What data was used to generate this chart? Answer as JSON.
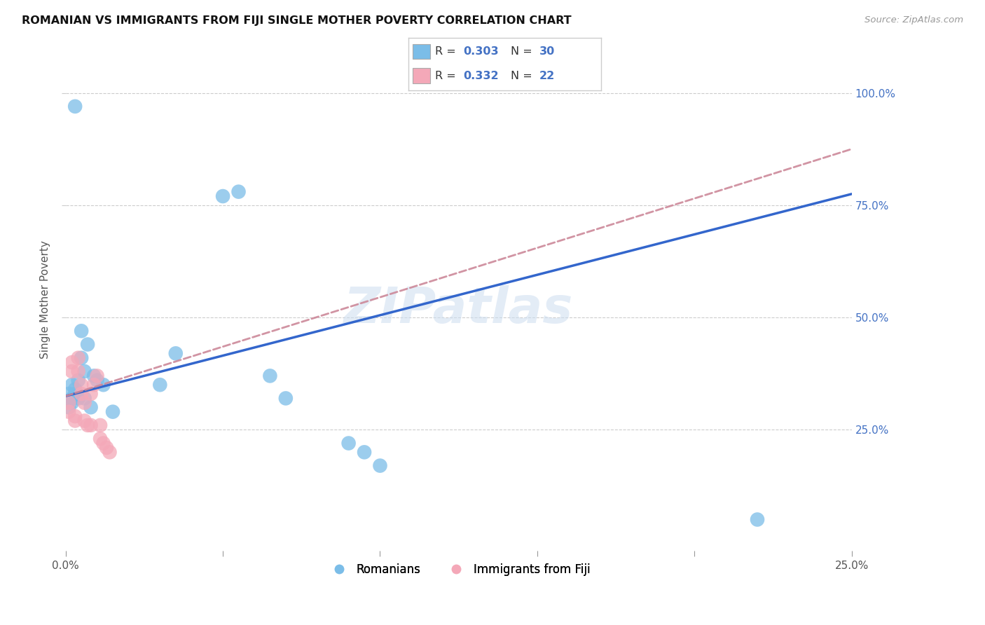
{
  "title": "ROMANIAN VS IMMIGRANTS FROM FIJI SINGLE MOTHER POVERTY CORRELATION CHART",
  "source": "Source: ZipAtlas.com",
  "ylabel": "Single Mother Poverty",
  "xlim": [
    0.0,
    0.25
  ],
  "ylim": [
    -0.02,
    1.1
  ],
  "blue_color": "#7bbde8",
  "pink_color": "#f4a8b8",
  "blue_line_color": "#3366cc",
  "pink_line_color": "#cc8899",
  "watermark": "ZIPatlas",
  "r_blue": 0.303,
  "n_blue": 30,
  "r_pink": 0.332,
  "n_pink": 22,
  "romanians_x": [
    0.001,
    0.001,
    0.002,
    0.002,
    0.002,
    0.003,
    0.003,
    0.003,
    0.004,
    0.004,
    0.005,
    0.005,
    0.006,
    0.006,
    0.007,
    0.008,
    0.009,
    0.01,
    0.012,
    0.015,
    0.03,
    0.035,
    0.05,
    0.055,
    0.065,
    0.07,
    0.09,
    0.095,
    0.1,
    0.22
  ],
  "romanians_y": [
    0.33,
    0.3,
    0.32,
    0.35,
    0.31,
    0.34,
    0.33,
    0.97,
    0.36,
    0.32,
    0.47,
    0.41,
    0.38,
    0.32,
    0.44,
    0.3,
    0.37,
    0.36,
    0.35,
    0.29,
    0.35,
    0.42,
    0.77,
    0.78,
    0.37,
    0.32,
    0.22,
    0.2,
    0.17,
    0.05
  ],
  "fiji_x": [
    0.001,
    0.001,
    0.002,
    0.002,
    0.003,
    0.003,
    0.004,
    0.004,
    0.005,
    0.005,
    0.006,
    0.006,
    0.007,
    0.008,
    0.008,
    0.009,
    0.01,
    0.011,
    0.011,
    0.012,
    0.013,
    0.014
  ],
  "fiji_y": [
    0.31,
    0.29,
    0.4,
    0.38,
    0.28,
    0.27,
    0.41,
    0.38,
    0.35,
    0.33,
    0.31,
    0.27,
    0.26,
    0.33,
    0.26,
    0.35,
    0.37,
    0.26,
    0.23,
    0.22,
    0.21,
    0.2
  ],
  "blue_line_x": [
    0.0,
    0.25
  ],
  "blue_line_y": [
    0.325,
    0.775
  ],
  "pink_line_x": [
    0.0,
    0.25
  ],
  "pink_line_y": [
    0.325,
    0.875
  ]
}
